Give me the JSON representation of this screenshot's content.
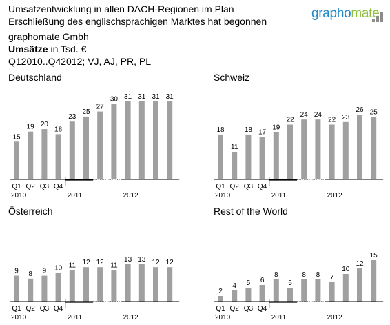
{
  "header": {
    "line1": "Umsatzentwicklung in allen DACH-Regionen im Plan",
    "line2": "Erschließung des englischsprachigen Marktes hat begonnen",
    "company": "graphomate Gmbh",
    "measure_bold": "Umsätze",
    "measure_unit": " in Tsd. €",
    "period": "Q12010..Q42012; VJ, AJ, PR, PL"
  },
  "logo": {
    "part1": "grapho",
    "part2": "mate",
    "colors": {
      "blue": "#1e88c8",
      "green": "#8ec03f",
      "icon": "#8c8c8c"
    }
  },
  "colors": {
    "bar": "#a0a0a0",
    "axis": "#000000",
    "label": "#000000"
  },
  "chart_data": [
    {
      "type": "bar",
      "title": "Deutschland",
      "categories": [
        "Q1 2010",
        "Q2 2010",
        "Q3 2010",
        "Q4 2010",
        "Q1 2011",
        "Q2 2011",
        "Q3 2011",
        "Q4 2011",
        "Q1 2012",
        "Q2 2012",
        "Q3 2012",
        "Q4 2012"
      ],
      "values": [
        15,
        19,
        20,
        18,
        23,
        25,
        27,
        30,
        31,
        31,
        31,
        31
      ],
      "quarter_labels": [
        "Q1",
        "Q2",
        "Q3",
        "Q4"
      ],
      "year_labels": [
        "2010",
        "2011",
        "2012"
      ],
      "ylim": [
        0,
        31
      ]
    },
    {
      "type": "bar",
      "title": "Schweiz",
      "categories": [
        "Q1 2010",
        "Q2 2010",
        "Q3 2010",
        "Q4 2010",
        "Q1 2011",
        "Q2 2011",
        "Q3 2011",
        "Q4 2011",
        "Q1 2012",
        "Q2 2012",
        "Q3 2012",
        "Q4 2012"
      ],
      "values": [
        18,
        11,
        18,
        17,
        19,
        22,
        24,
        24,
        22,
        23,
        26,
        25
      ],
      "quarter_labels": [
        "Q1",
        "Q2",
        "Q3",
        "Q4"
      ],
      "year_labels": [
        "2010",
        "2011",
        "2012"
      ],
      "ylim": [
        0,
        26
      ]
    },
    {
      "type": "bar",
      "title": "Österreich",
      "categories": [
        "Q1 2010",
        "Q2 2010",
        "Q3 2010",
        "Q4 2010",
        "Q1 2011",
        "Q2 2011",
        "Q3 2011",
        "Q4 2011",
        "Q1 2012",
        "Q2 2012",
        "Q3 2012",
        "Q4 2012"
      ],
      "values": [
        9,
        8,
        9,
        10,
        11,
        12,
        12,
        11,
        13,
        13,
        12,
        12
      ],
      "quarter_labels": [
        "Q1",
        "Q2",
        "Q3",
        "Q4"
      ],
      "year_labels": [
        "2010",
        "2011",
        "2012"
      ],
      "ylim": [
        0,
        13
      ]
    },
    {
      "type": "bar",
      "title": "Rest of the World",
      "categories": [
        "Q1 2010",
        "Q2 2010",
        "Q3 2010",
        "Q4 2010",
        "Q1 2011",
        "Q2 2011",
        "Q3 2011",
        "Q4 2011",
        "Q1 2012",
        "Q2 2012",
        "Q3 2012",
        "Q4 2012"
      ],
      "values": [
        2,
        4,
        5,
        6,
        8,
        5,
        8,
        8,
        7,
        10,
        12,
        15
      ],
      "quarter_labels": [
        "Q1",
        "Q2",
        "Q3",
        "Q4"
      ],
      "year_labels": [
        "2010",
        "2011",
        "2012"
      ],
      "ylim": [
        0,
        15
      ]
    }
  ]
}
